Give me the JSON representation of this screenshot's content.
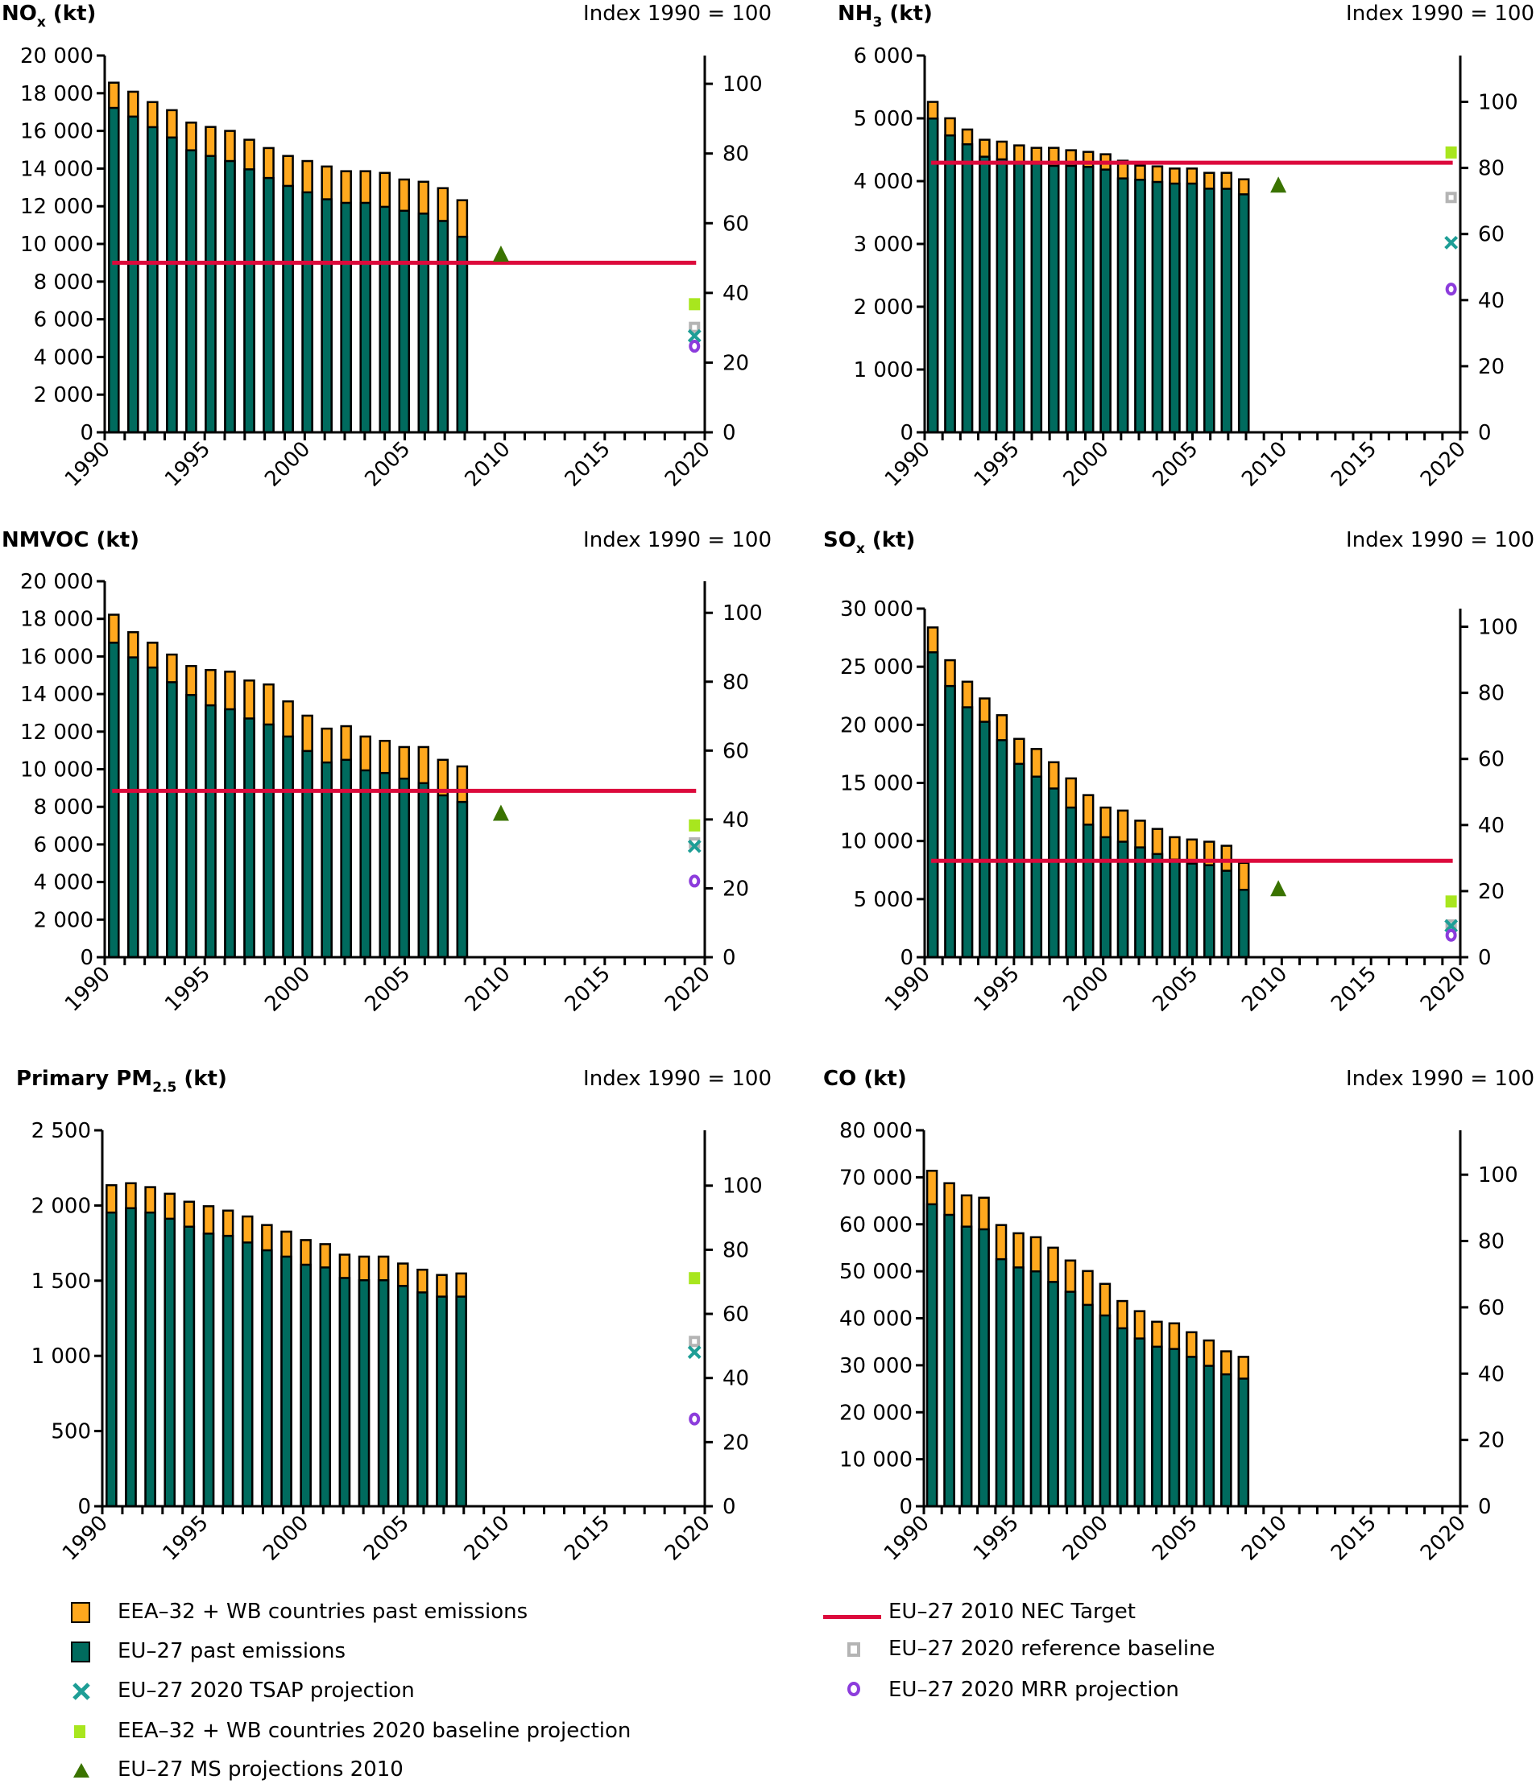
{
  "figure": {
    "index_label": "Index 1990 = 100"
  },
  "colors": {
    "eea_past": "#FFA81E",
    "eu_past": "#006B5E",
    "tsap": "#1E9E96",
    "eea_baseline_2020": "#A8E61E",
    "ms_2010": "#3A7300",
    "nec_target": "#DC0A3C",
    "ref_baseline": "#B4B4B4",
    "mrr": "#8C3CDC"
  },
  "legend": {
    "left": [
      {
        "key": "eea_past",
        "label": "EEA–32 + WB countries past emissions",
        "marker": "filled-square"
      },
      {
        "key": "eu_past",
        "label": "EU–27 past emissions",
        "marker": "filled-square"
      },
      {
        "key": "tsap",
        "label": "EU–27 2020 TSAP projection",
        "marker": "x"
      },
      {
        "key": "eea_baseline_2020",
        "label": "EEA–32 + WB countries 2020 baseline projection",
        "marker": "small-square"
      },
      {
        "key": "ms_2010",
        "label": "EU–27 MS projections 2010",
        "marker": "triangle"
      }
    ],
    "right": [
      {
        "key": "nec_target",
        "label": "EU–27 2010 NEC Target",
        "marker": "line"
      },
      {
        "key": "ref_baseline",
        "label": "EU–27 2020 reference baseline",
        "marker": "open-square"
      },
      {
        "key": "mrr",
        "label": "EU–27 2020 MRR projection",
        "marker": "circle"
      }
    ]
  },
  "chart_data": [
    {
      "id": "nox",
      "type": "bar",
      "title_main": "NO",
      "title_sub": "x",
      "title_unit": " (kt)",
      "ylabel_right": "Index 1990 = 100",
      "ylim": [
        0,
        20000
      ],
      "yticks": [
        0,
        2000,
        4000,
        6000,
        8000,
        10000,
        12000,
        14000,
        16000,
        18000,
        20000
      ],
      "ytick_labels": [
        "0",
        "2 000",
        "4 000",
        "6 000",
        "8 000",
        "10 000",
        "12 000",
        "14 000",
        "16 000",
        "18 000",
        "20 000"
      ],
      "index_base_kt": 18500,
      "index_ticks": [
        0,
        20,
        40,
        60,
        80,
        100
      ],
      "xlim": [
        1990,
        2020
      ],
      "xtick_labels": [
        "1990",
        "1995",
        "2000",
        "2005",
        "2010",
        "2015",
        "2020"
      ],
      "years": [
        1990,
        1991,
        1992,
        1993,
        1994,
        1995,
        1996,
        1997,
        1998,
        1999,
        2000,
        2001,
        2002,
        2003,
        2004,
        2005,
        2006,
        2007,
        2008
      ],
      "series": [
        {
          "name": "EEA–32 + WB countries past emissions",
          "key": "eea_past",
          "values": [
            18560,
            18080,
            17530,
            17100,
            16440,
            16210,
            16000,
            15530,
            15090,
            14670,
            14400,
            14110,
            13860,
            13860,
            13770,
            13420,
            13300,
            12960,
            12320
          ]
        },
        {
          "name": "EU–27 past emissions",
          "key": "eu_past",
          "values": [
            17220,
            16760,
            16200,
            15650,
            14970,
            14670,
            14400,
            13960,
            13500,
            13080,
            12740,
            12370,
            12180,
            12180,
            11970,
            11760,
            11610,
            11220,
            10380
          ]
        }
      ],
      "nec_target": 9000,
      "ms_projection_2010": 9400,
      "projections_2020": {
        "eea_baseline_2020": 6780,
        "ref_baseline": 5570,
        "tsap": 5120,
        "mrr": 4570
      }
    },
    {
      "id": "nh3",
      "type": "bar",
      "title_main": "NH",
      "title_sub": "3",
      "title_unit": " (kt)",
      "ylabel_right": "Index 1990 = 100",
      "ylim": [
        0,
        6000
      ],
      "yticks": [
        0,
        1000,
        2000,
        3000,
        4000,
        5000,
        6000
      ],
      "ytick_labels": [
        "0",
        "1 000",
        "2 000",
        "3 000",
        "4 000",
        "5 000",
        "6 000"
      ],
      "index_base_kt": 5263,
      "index_ticks": [
        0,
        20,
        40,
        60,
        80,
        100
      ],
      "xlim": [
        1990,
        2020
      ],
      "xtick_labels": [
        "1990",
        "1995",
        "2000",
        "2005",
        "2010",
        "2015",
        "2020"
      ],
      "years": [
        1990,
        1991,
        1992,
        1993,
        1994,
        1995,
        1996,
        1997,
        1998,
        1999,
        2000,
        2001,
        2002,
        2003,
        2004,
        2005,
        2006,
        2007,
        2008
      ],
      "series": [
        {
          "name": "EEA–32 + WB countries past emissions",
          "key": "eea_past",
          "values": [
            5262,
            5001,
            4822,
            4659,
            4629,
            4569,
            4530,
            4530,
            4492,
            4466,
            4428,
            4325,
            4248,
            4235,
            4201,
            4201,
            4132,
            4132,
            4029
          ]
        },
        {
          "name": "EU–27 past emissions",
          "key": "eu_past",
          "values": [
            4997,
            4728,
            4587,
            4389,
            4347,
            4280,
            4278,
            4244,
            4244,
            4227,
            4184,
            4043,
            4022,
            3987,
            3961,
            3961,
            3880,
            3878,
            3790
          ]
        }
      ],
      "nec_target": 4294,
      "ms_projection_2010": 3920,
      "projections_2020": {
        "eea_baseline_2020": 4450,
        "ref_baseline": 3740,
        "tsap": 3020,
        "mrr": 2280
      }
    },
    {
      "id": "nmvoc",
      "type": "bar",
      "title_main": "NMVOC",
      "title_sub": "",
      "title_unit": " (kt)",
      "ylabel_right": "Index 1990 = 100",
      "ylim": [
        0,
        20000
      ],
      "yticks": [
        0,
        2000,
        4000,
        6000,
        8000,
        10000,
        12000,
        14000,
        16000,
        18000,
        20000
      ],
      "ytick_labels": [
        "0",
        "2 000",
        "4 000",
        "6 000",
        "8 000",
        "10 000",
        "12 000",
        "14 000",
        "16 000",
        "18 000",
        "20 000"
      ],
      "index_base_kt": 18320,
      "index_ticks": [
        0,
        20,
        40,
        60,
        80,
        100
      ],
      "xlim": [
        1990,
        2020
      ],
      "xtick_labels": [
        "1990",
        "1995",
        "2000",
        "2005",
        "2010",
        "2015",
        "2020"
      ],
      "years": [
        1990,
        1991,
        1992,
        1993,
        1994,
        1995,
        1996,
        1997,
        1998,
        1999,
        2000,
        2001,
        2002,
        2003,
        2004,
        2005,
        2006,
        2007,
        2008
      ],
      "series": [
        {
          "name": "EEA–32 + WB countries past emissions",
          "key": "eea_past",
          "values": [
            18220,
            17290,
            16730,
            16100,
            15490,
            15280,
            15190,
            14720,
            14510,
            13610,
            12850,
            12160,
            12290,
            11740,
            11510,
            11180,
            11180,
            10500,
            10150
          ]
        },
        {
          "name": "EU–27 past emissions",
          "key": "eu_past",
          "values": [
            16730,
            15950,
            15410,
            14630,
            13950,
            13400,
            13190,
            12700,
            12380,
            11740,
            10970,
            10360,
            10500,
            9940,
            9800,
            9500,
            9260,
            8610,
            8260
          ]
        }
      ],
      "nec_target": 8848,
      "ms_projection_2010": 7600,
      "projections_2020": {
        "eea_baseline_2020": 6990,
        "ref_baseline": 6080,
        "tsap": 5900,
        "mrr": 4050
      }
    },
    {
      "id": "sox",
      "type": "bar",
      "title_main": "SO",
      "title_sub": "x",
      "title_unit": " (kt)",
      "ylabel_right": "Index 1990 = 100",
      "ylim": [
        0,
        30000
      ],
      "yticks": [
        0,
        5000,
        10000,
        15000,
        20000,
        25000,
        30000
      ],
      "ytick_labels": [
        "0",
        "5 000",
        "10 000",
        "15 000",
        "20 000",
        "25 000",
        "30 000"
      ],
      "index_base_kt": 28440,
      "index_ticks": [
        0,
        20,
        40,
        60,
        80,
        100
      ],
      "xlim": [
        1990,
        2020
      ],
      "xtick_labels": [
        "1990",
        "1995",
        "2000",
        "2005",
        "2010",
        "2015",
        "2020"
      ],
      "years": [
        1990,
        1991,
        1992,
        1993,
        1994,
        1995,
        1996,
        1997,
        1998,
        1999,
        2000,
        2001,
        2002,
        2003,
        2004,
        2005,
        2006,
        2007,
        2008
      ],
      "series": [
        {
          "name": "EEA–32 + WB countries past emissions",
          "key": "eea_past",
          "values": [
            28380,
            25560,
            23710,
            22270,
            20830,
            18790,
            17920,
            16780,
            15390,
            13950,
            12880,
            12620,
            11750,
            11040,
            10330,
            10130,
            9940,
            9590,
            8120
          ]
        },
        {
          "name": "EU–27 past emissions",
          "key": "eu_past",
          "values": [
            26240,
            23340,
            21510,
            20260,
            18680,
            16640,
            15540,
            14520,
            12880,
            11410,
            10330,
            9940,
            9450,
            8880,
            8400,
            8060,
            7920,
            7440,
            5800
          ]
        }
      ],
      "nec_target": 8297,
      "ms_projection_2010": 5800,
      "projections_2020": {
        "eea_baseline_2020": 4760,
        "ref_baseline": 2770,
        "tsap": 2700,
        "mrr": 1890
      }
    },
    {
      "id": "pm25",
      "type": "bar",
      "title_main": "Primary PM",
      "title_sub": "2.5",
      "title_unit": " (kt)",
      "ylabel_right": "Index 1990 = 100",
      "ylim": [
        0,
        2500
      ],
      "yticks": [
        0,
        500,
        1000,
        1500,
        2000,
        2500
      ],
      "ytick_labels": [
        "0",
        "500",
        "1 000",
        "1 500",
        "2 000",
        "2 500"
      ],
      "index_base_kt": 2132,
      "index_ticks": [
        0,
        20,
        40,
        60,
        80,
        100
      ],
      "xlim": [
        1990,
        2020
      ],
      "xtick_labels": [
        "1990",
        "1995",
        "2000",
        "2005",
        "2010",
        "2015",
        "2020"
      ],
      "years": [
        1990,
        1991,
        1992,
        1993,
        1994,
        1995,
        1996,
        1997,
        1998,
        1999,
        2000,
        2001,
        2002,
        2003,
        2004,
        2005,
        2006,
        2007,
        2008
      ],
      "series": [
        {
          "name": "EEA–32 + WB countries past emissions",
          "key": "eea_past",
          "values": [
            2135,
            2148,
            2122,
            2078,
            2025,
            1995,
            1966,
            1927,
            1870,
            1826,
            1770,
            1743,
            1673,
            1660,
            1660,
            1614,
            1573,
            1538,
            1548
          ]
        },
        {
          "name": "EU–27 past emissions",
          "key": "eu_past",
          "values": [
            1953,
            1982,
            1953,
            1912,
            1859,
            1813,
            1798,
            1754,
            1702,
            1660,
            1606,
            1588,
            1518,
            1503,
            1503,
            1465,
            1422,
            1394,
            1394
          ]
        }
      ],
      "nec_target": null,
      "ms_projection_2010": null,
      "projections_2020": {
        "eea_baseline_2020": 1514,
        "ref_baseline": 1096,
        "tsap": 1024,
        "mrr": 580
      }
    },
    {
      "id": "co",
      "type": "bar",
      "title_main": "CO",
      "title_sub": "",
      "title_unit": " (kt)",
      "ylabel_right": "Index 1990 = 100",
      "ylim": [
        0,
        80000
      ],
      "yticks": [
        0,
        10000,
        20000,
        30000,
        40000,
        50000,
        60000,
        70000,
        80000
      ],
      "ytick_labels": [
        "0",
        "10 000",
        "20 000",
        "30 000",
        "40 000",
        "50 000",
        "60 000",
        "70 000",
        "80 000"
      ],
      "index_base_kt": 70550,
      "index_ticks": [
        0,
        20,
        40,
        60,
        80,
        100
      ],
      "xlim": [
        1990,
        2020
      ],
      "xtick_labels": [
        "1990",
        "1995",
        "2000",
        "2005",
        "2010",
        "2015",
        "2020"
      ],
      "years": [
        1990,
        1991,
        1992,
        1993,
        1994,
        1995,
        1996,
        1997,
        1998,
        1999,
        2000,
        2001,
        2002,
        2003,
        2004,
        2005,
        2006,
        2007,
        2008
      ],
      "series": [
        {
          "name": "EEA–32 + WB countries past emissions",
          "key": "eea_past",
          "values": [
            71390,
            68740,
            66150,
            65650,
            59840,
            58090,
            57250,
            55020,
            52290,
            50050,
            47320,
            43670,
            41510,
            39260,
            38920,
            37030,
            35280,
            32970,
            31790
          ]
        },
        {
          "name": "EU–27 past emissions",
          "key": "eu_past",
          "values": [
            64260,
            62010,
            59500,
            58930,
            52570,
            50820,
            49980,
            47730,
            45640,
            42850,
            40600,
            37870,
            35700,
            33950,
            33470,
            31790,
            29880,
            28070,
            27160
          ]
        }
      ],
      "nec_target": null,
      "ms_projection_2010": null,
      "projections_2020": null
    }
  ]
}
